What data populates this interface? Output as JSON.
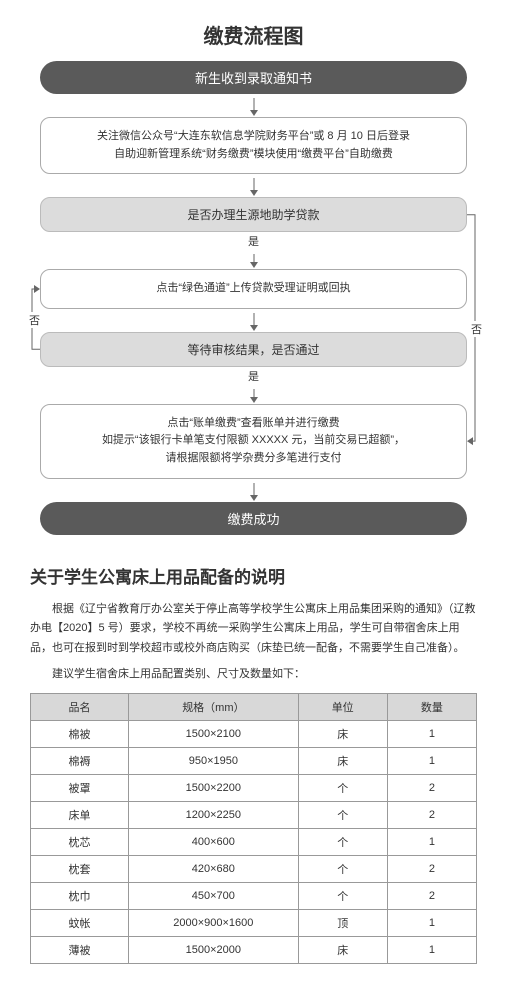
{
  "flowchart": {
    "title": "缴费流程图",
    "start": "新生收到录取通知书",
    "step1": "关注微信公众号“大连东软信息学院财务平台”或 8 月 10 日后登录\n自助迎新管理系统“财务缴费”模块使用“缴费平台”自助缴费",
    "decision1": "是否办理生源地助学贷款",
    "yes": "是",
    "no": "否",
    "step2": "点击“绿色通道”上传贷款受理证明或回执",
    "decision2": "等待审核结果，是否通过",
    "step3": "点击“账单缴费”查看账单并进行缴费\n如提示“该银行卡单笔支付限额 XXXXX 元，当前交易已超额”，\n请根据限额将学杂费分多笔进行支付",
    "end": "缴费成功",
    "colors": {
      "pill_dark": "#5a5a5a",
      "box_gray": "#dcdcdc",
      "border": "#aaaaaa",
      "text_white": "#ffffff"
    }
  },
  "section": {
    "title": "关于学生公寓床上用品配备的说明",
    "para1": "根据《辽宁省教育厅办公室关于停止高等学校学生公寓床上用品集团采购的通知》（辽教办电【2020】5 号）要求，学校不再统一采购学生公寓床上用品，学生可自带宿舍床上用品，也可在报到时到学校超市或校外商店购买（床垫已统一配备，不需要学生自己准备）。",
    "para2": "建议学生宿舍床上用品配置类别、尺寸及数量如下："
  },
  "table": {
    "columns": [
      "品名",
      "规格（mm）",
      "单位",
      "数量"
    ],
    "rows": [
      [
        "棉被",
        "1500×2100",
        "床",
        "1"
      ],
      [
        "棉褥",
        "950×1950",
        "床",
        "1"
      ],
      [
        "被罩",
        "1500×2200",
        "个",
        "2"
      ],
      [
        "床单",
        "1200×2250",
        "个",
        "2"
      ],
      [
        "枕芯",
        "400×600",
        "个",
        "1"
      ],
      [
        "枕套",
        "420×680",
        "个",
        "2"
      ],
      [
        "枕巾",
        "450×700",
        "个",
        "2"
      ],
      [
        "蚊帐",
        "2000×900×1600",
        "顶",
        "1"
      ],
      [
        "薄被",
        "1500×2000",
        "床",
        "1"
      ]
    ],
    "col_widths": [
      "22%",
      "38%",
      "20%",
      "20%"
    ]
  }
}
